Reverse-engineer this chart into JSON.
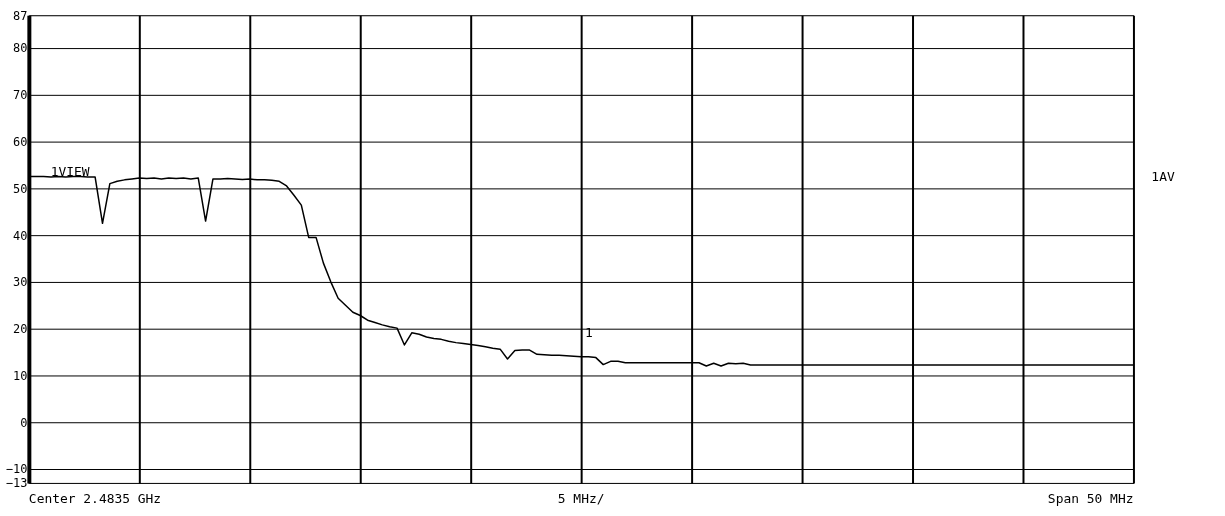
{
  "chart_data": {
    "type": "line",
    "categories": [
      null,
      null,
      null,
      null,
      null,
      null,
      null,
      null,
      null,
      null,
      null,
      null,
      null,
      null,
      null,
      null,
      null,
      null,
      null,
      null,
      null,
      null,
      null,
      null,
      null,
      null,
      null,
      null,
      null,
      null,
      null,
      null,
      null,
      null,
      null,
      null,
      null,
      null,
      null,
      null,
      null,
      null,
      null,
      null,
      null,
      null,
      null,
      null,
      null,
      null,
      null,
      null,
      null,
      null,
      null,
      null,
      null,
      null,
      null,
      null,
      null,
      null,
      null,
      null,
      null,
      null,
      null,
      null,
      null,
      null,
      null,
      null,
      null,
      null,
      null,
      null,
      null,
      null,
      null,
      null,
      null,
      null,
      null,
      null,
      null,
      null,
      null,
      null,
      null,
      null,
      null,
      null,
      null,
      null,
      null,
      null,
      null,
      null,
      null,
      null,
      null,
      null,
      null,
      null,
      null,
      null,
      null,
      null,
      null,
      null,
      null,
      null,
      null,
      null,
      null,
      null,
      null,
      null,
      null,
      null,
      null,
      null,
      null,
      null,
      null,
      null,
      null,
      null,
      null,
      null,
      null,
      null,
      null,
      null,
      null,
      null,
      null,
      null,
      null,
      null,
      null,
      null,
      null,
      null,
      null,
      null,
      null,
      null,
      null,
      null,
      null
    ],
    "series": [
      {
        "color": "#000000",
        "values": [
          52.5,
          52.5,
          52.5,
          52.4,
          52.5,
          52.4,
          52.5,
          52.5,
          52.4,
          52.4,
          42.5,
          51,
          51.5,
          51.8,
          52,
          52.2,
          52.1,
          52.2,
          52,
          52.2,
          52.1,
          52.2,
          52,
          52.2,
          43,
          52,
          52,
          52.1,
          52,
          51.9,
          52,
          51.8,
          51.8,
          51.7,
          51.5,
          50.5,
          48.5,
          46.4,
          39.5,
          39.5,
          34,
          30,
          26.5,
          25,
          23.5,
          22.8,
          21.8,
          21.3,
          20.8,
          20.4,
          20.1,
          16.5,
          19.1,
          18.8,
          18.2,
          17.9,
          17.7,
          17.3,
          17,
          16.8,
          16.6,
          16.4,
          16.1,
          15.8,
          15.6,
          13.5,
          15.3,
          15.4,
          15.4,
          14.5,
          14.4,
          14.3,
          14.3,
          14.2,
          14.1,
          14,
          14,
          13.8,
          12.3,
          13,
          13,
          12.7,
          12.7,
          12.7,
          12.7,
          12.7,
          12.7,
          12.7,
          12.7,
          12.7,
          12.7,
          12.7,
          12,
          12.6,
          12,
          12.6,
          12.5,
          12.6,
          12.2,
          12.2,
          12.2,
          12.2,
          12.2,
          12.2,
          12.2,
          12.2,
          12.2,
          12.2,
          12.2,
          12.2,
          12.2,
          12.2,
          12.2,
          12.2,
          12.2,
          12.2,
          12.2,
          12.2,
          12.2,
          12.2,
          12.2,
          12.2,
          12.2,
          12.2,
          12.2,
          12.2,
          12.2,
          12.2,
          12.2,
          12.2,
          12.2,
          12.2,
          12.2,
          12.2,
          12.2,
          12.2,
          12.2,
          12.2,
          12.2,
          12.2,
          12.2,
          12.2,
          12.2,
          12.2,
          12.2,
          12.2,
          12.2,
          12.2,
          12.2,
          12.2,
          12.2
        ]
      }
    ],
    "ylim": [
      -13,
      87
    ],
    "yticks": [
      -13,
      -10,
      0,
      10,
      20,
      30,
      40,
      50,
      60,
      70,
      80,
      87
    ],
    "grid": true,
    "marker": "none",
    "line_style": "solid",
    "annotations": [
      "1VIEW",
      "1AV",
      "Center 2.4835 GHz",
      "5 MHz/",
      "Span 50 MHz",
      "1"
    ]
  }
}
